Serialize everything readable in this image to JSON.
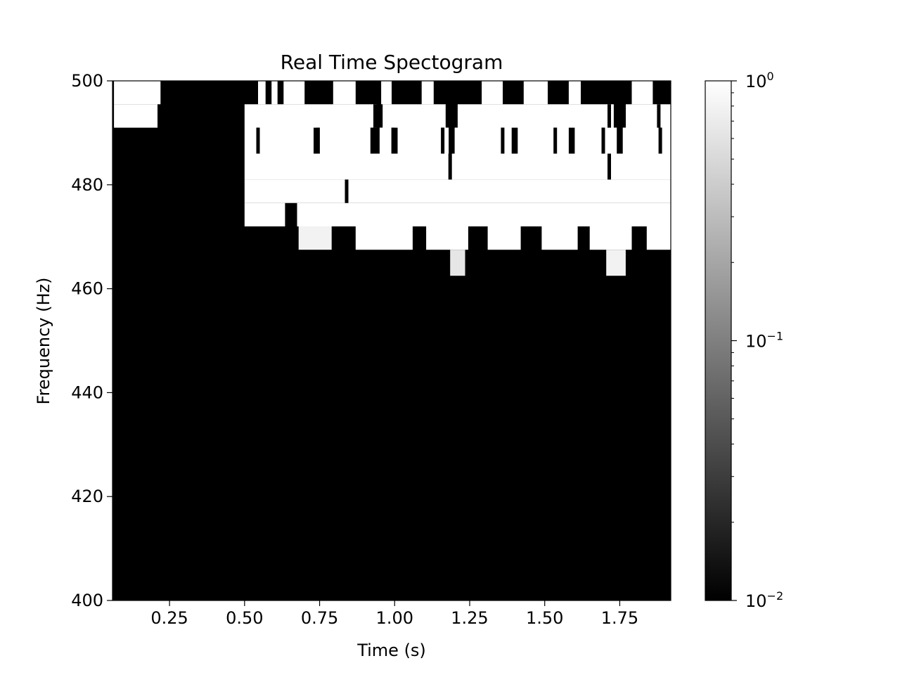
{
  "chart_data": {
    "type": "heatmap",
    "title": "Real Time Spectogram",
    "xlabel": "Time (s)",
    "ylabel": "Frequency (Hz)",
    "xlim": [
      0.06,
      1.92
    ],
    "ylim": [
      400,
      500
    ],
    "x_ticks": [
      0.25,
      0.5,
      0.75,
      1.0,
      1.25,
      1.5,
      1.75
    ],
    "x_tick_labels": [
      "0.25",
      "0.50",
      "0.75",
      "1.00",
      "1.25",
      "1.50",
      "1.75"
    ],
    "y_ticks": [
      400,
      420,
      440,
      460,
      480,
      500
    ],
    "y_tick_labels": [
      "400",
      "420",
      "440",
      "460",
      "480",
      "500"
    ],
    "colormap": "gray",
    "color_scale": "log",
    "color_range": [
      0.01,
      1
    ],
    "colorbar": {
      "ticks": [
        {
          "value": 1,
          "base": "10",
          "exp": "0"
        },
        {
          "value": 0.1,
          "base": "10",
          "exp": "−1"
        },
        {
          "value": 0.01,
          "base": "10",
          "exp": "−2"
        }
      ],
      "minor_ticks": [
        0.02,
        0.03,
        0.04,
        0.05,
        0.06,
        0.07,
        0.08,
        0.09,
        0.2,
        0.3,
        0.4,
        0.5,
        0.6,
        0.7,
        0.8,
        0.9
      ]
    },
    "frequency_bins": [
      {
        "f_low": 495.5,
        "f_high": 500.0
      },
      {
        "f_low": 491.0,
        "f_high": 495.5
      },
      {
        "f_low": 486.0,
        "f_high": 491.0
      },
      {
        "f_low": 481.0,
        "f_high": 486.0
      },
      {
        "f_low": 476.5,
        "f_high": 481.0
      },
      {
        "f_low": 472.0,
        "f_high": 476.5
      },
      {
        "f_low": 467.5,
        "f_high": 472.0
      },
      {
        "f_low": 462.5,
        "f_high": 467.5
      }
    ],
    "bright_segments": [
      {
        "bin": 0,
        "t0": 0.065,
        "t1": 0.22,
        "level": 1
      },
      {
        "bin": 0,
        "t0": 0.545,
        "t1": 0.57,
        "level": 1
      },
      {
        "bin": 0,
        "t0": 0.59,
        "t1": 0.61,
        "level": 1
      },
      {
        "bin": 0,
        "t0": 0.63,
        "t1": 0.7,
        "level": 1
      },
      {
        "bin": 0,
        "t0": 0.795,
        "t1": 0.87,
        "level": 1
      },
      {
        "bin": 0,
        "t0": 0.955,
        "t1": 0.99,
        "level": 1
      },
      {
        "bin": 0,
        "t0": 1.09,
        "t1": 1.13,
        "level": 1
      },
      {
        "bin": 0,
        "t0": 1.29,
        "t1": 1.36,
        "level": 1
      },
      {
        "bin": 0,
        "t0": 1.43,
        "t1": 1.51,
        "level": 1
      },
      {
        "bin": 0,
        "t0": 1.58,
        "t1": 1.62,
        "level": 1
      },
      {
        "bin": 0,
        "t0": 1.79,
        "t1": 1.86,
        "level": 1
      },
      {
        "bin": 1,
        "t0": 0.065,
        "t1": 0.21,
        "level": 1
      },
      {
        "bin": 1,
        "t0": 0.5,
        "t1": 0.94,
        "level": 1
      },
      {
        "bin": 1,
        "t0": 0.96,
        "t1": 1.17,
        "level": 1
      },
      {
        "bin": 1,
        "t0": 1.21,
        "t1": 1.73,
        "level": 1
      },
      {
        "bin": 1,
        "t0": 1.77,
        "t1": 1.92,
        "level": 1
      },
      {
        "bin": 2,
        "t0": 0.5,
        "t1": 0.73,
        "level": 1
      },
      {
        "bin": 2,
        "t0": 0.75,
        "t1": 0.92,
        "level": 1
      },
      {
        "bin": 2,
        "t0": 0.95,
        "t1": 0.995,
        "level": 1
      },
      {
        "bin": 2,
        "t0": 1.01,
        "t1": 1.18,
        "level": 1
      },
      {
        "bin": 2,
        "t0": 1.2,
        "t1": 1.39,
        "level": 1
      },
      {
        "bin": 2,
        "t0": 1.41,
        "t1": 1.58,
        "level": 1
      },
      {
        "bin": 2,
        "t0": 1.6,
        "t1": 1.74,
        "level": 1
      },
      {
        "bin": 2,
        "t0": 1.76,
        "t1": 1.92,
        "level": 1
      },
      {
        "bin": 3,
        "t0": 0.5,
        "t1": 1.92,
        "level": 1
      },
      {
        "bin": 4,
        "t0": 0.5,
        "t1": 1.92,
        "level": 1
      },
      {
        "bin": 5,
        "t0": 0.5,
        "t1": 0.635,
        "level": 1
      },
      {
        "bin": 5,
        "t0": 0.675,
        "t1": 1.92,
        "level": 1
      },
      {
        "bin": 6,
        "t0": 0.68,
        "t1": 0.79,
        "level": 0.95
      },
      {
        "bin": 6,
        "t0": 0.87,
        "t1": 1.06,
        "level": 1
      },
      {
        "bin": 6,
        "t0": 1.105,
        "t1": 1.245,
        "level": 1
      },
      {
        "bin": 6,
        "t0": 1.31,
        "t1": 1.42,
        "level": 1
      },
      {
        "bin": 6,
        "t0": 1.49,
        "t1": 1.61,
        "level": 1
      },
      {
        "bin": 6,
        "t0": 1.65,
        "t1": 1.79,
        "level": 1
      },
      {
        "bin": 6,
        "t0": 1.84,
        "t1": 1.92,
        "level": 1
      },
      {
        "bin": 7,
        "t0": 1.185,
        "t1": 1.235,
        "level": 0.9
      },
      {
        "bin": 7,
        "t0": 1.705,
        "t1": 1.77,
        "level": 0.95
      }
    ],
    "dark_ticks": [
      {
        "bin": 1,
        "t": 0.935
      },
      {
        "bin": 1,
        "t": 1.715
      },
      {
        "bin": 1,
        "t": 1.88
      },
      {
        "bin": 2,
        "t": 0.545
      },
      {
        "bin": 2,
        "t": 0.745
      },
      {
        "bin": 2,
        "t": 0.925
      },
      {
        "bin": 2,
        "t": 0.995
      },
      {
        "bin": 2,
        "t": 1.16
      },
      {
        "bin": 2,
        "t": 1.36
      },
      {
        "bin": 2,
        "t": 1.535
      },
      {
        "bin": 2,
        "t": 1.695
      },
      {
        "bin": 2,
        "t": 1.885
      },
      {
        "bin": 3,
        "t": 1.185
      },
      {
        "bin": 3,
        "t": 1.715
      },
      {
        "bin": 4,
        "t": 0.84
      }
    ]
  }
}
